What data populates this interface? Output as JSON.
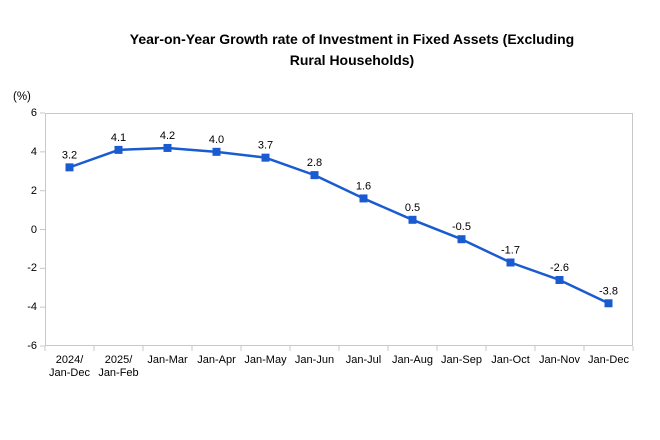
{
  "title": "Year-on-Year Growth rate of Investment in Fixed Assets (Excluding\nRural Households)",
  "y_axis_unit": "(%)",
  "chart_data": {
    "type": "line",
    "title": "Year-on-Year Growth rate of Investment in Fixed Assets (Excluding Rural Households)",
    "ylabel": "(%)",
    "xlabel": "",
    "categories": [
      "2024/\nJan-Dec",
      "2025/\nJan-Feb",
      "Jan-Mar",
      "Jan-Apr",
      "Jan-May",
      "Jan-Jun",
      "Jan-Jul",
      "Jan-Aug",
      "Jan-Sep",
      "Jan-Oct",
      "Jan-Nov",
      "Jan-Dec"
    ],
    "values": [
      3.2,
      4.1,
      4.2,
      4.0,
      3.7,
      2.8,
      1.6,
      0.5,
      -0.5,
      -1.7,
      -2.6,
      -3.8
    ],
    "data_labels": [
      "3.2",
      "4.1",
      "4.2",
      "4.0",
      "3.7",
      "2.8",
      "1.6",
      "0.5",
      "-0.5",
      "-1.7",
      "-2.6",
      "-3.8"
    ],
    "ylim": [
      -6,
      6
    ],
    "y_ticks": [
      "6",
      "4",
      "2",
      "0",
      "-2",
      "-4",
      "-6"
    ],
    "grid": "off",
    "legend": "none",
    "marker": "square",
    "colors": {
      "series": "#1a5bd1",
      "axis_border": "#c8c8c8",
      "text": "#000000",
      "background": "#ffffff"
    }
  }
}
